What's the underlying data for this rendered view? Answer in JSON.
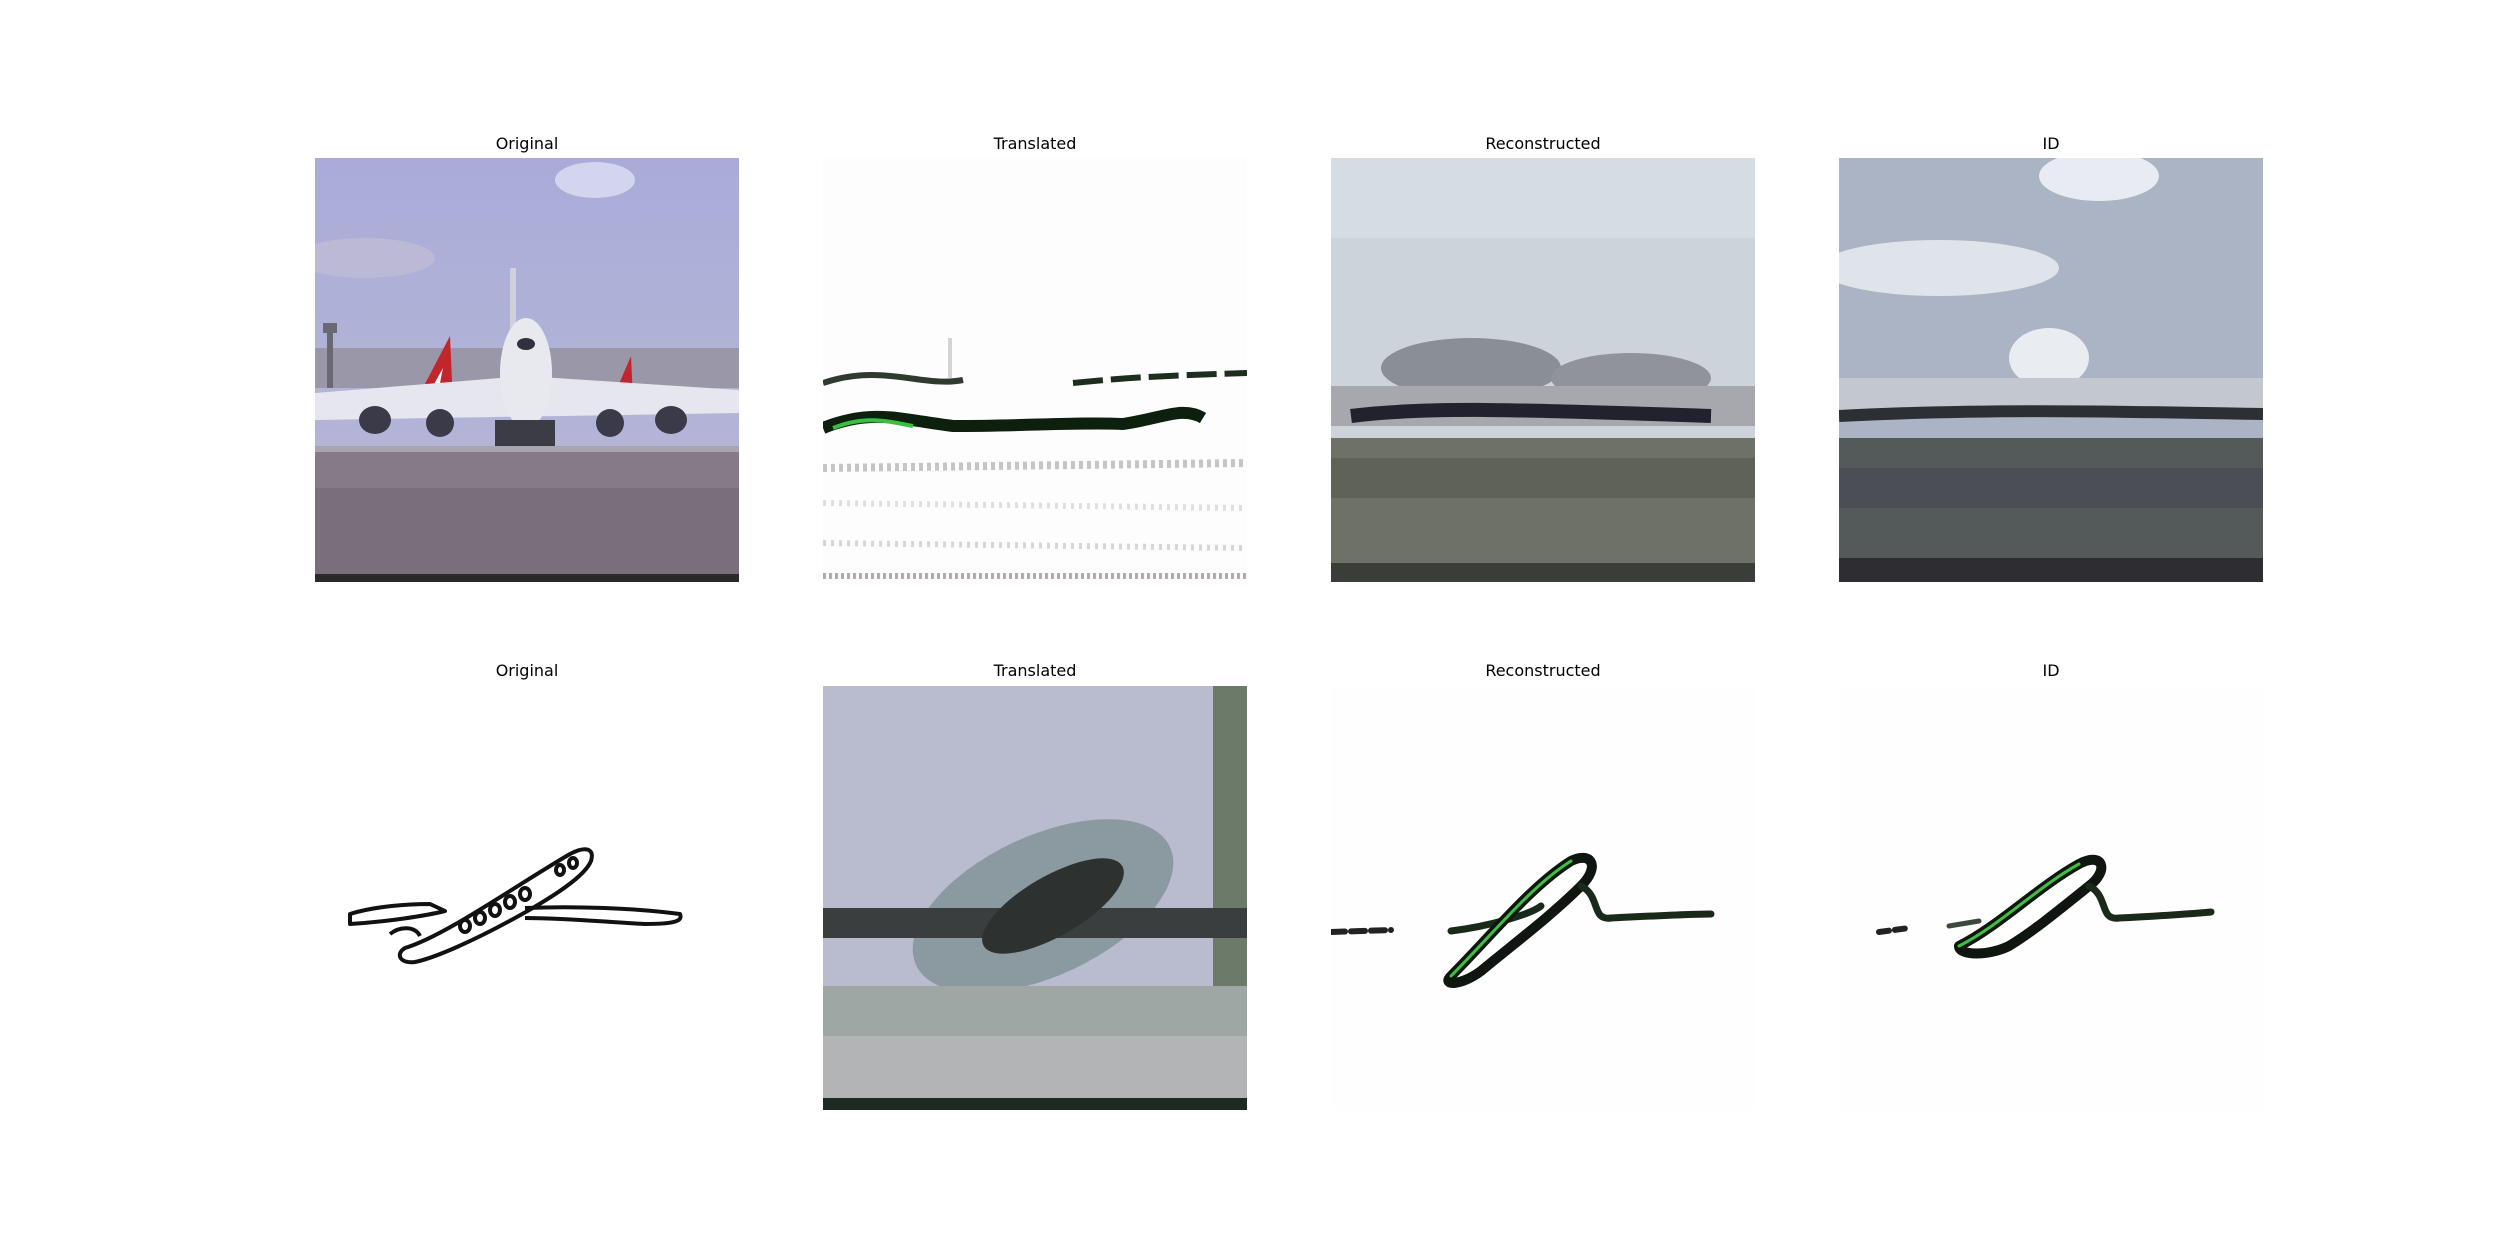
{
  "rows": [
    {
      "titles": [
        "Original",
        "Translated",
        "Reconstructed",
        "ID"
      ]
    },
    {
      "titles": [
        "Original",
        "Translated",
        "Reconstructed",
        "ID"
      ]
    }
  ],
  "panels": {
    "row1": {
      "original": "photo of a jumbo jet on an airport runway with red tail planes behind",
      "translated": "sketch-style white image with dark green-black airplane streaks",
      "reconstructed": "blurry photo-like reconstruction of the airplane on runway",
      "id": "blurry photo-like identity reconstruction of runway scene"
    },
    "row2": {
      "original": "black line drawing of an airplane on white",
      "translated": "blurry photo-like image of airplane shape, grey-blue tones",
      "reconstructed": "green-black sketch strokes of airplane on white",
      "id": "green-black sketch strokes of airplane on white"
    }
  }
}
